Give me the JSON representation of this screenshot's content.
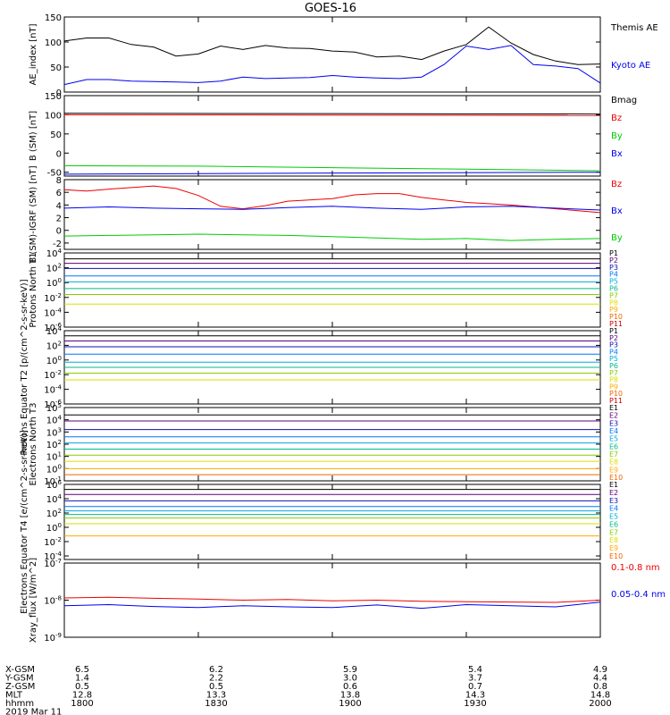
{
  "title": "GOES-16",
  "footer": {
    "rows": [
      "X-GSM",
      "Y-GSM",
      "Z-GSM",
      "MLT",
      "hhmm"
    ],
    "date": "2019 Mar 11",
    "columns": [
      [
        "6.5",
        "1.4",
        "0.5",
        "12.8",
        "1800"
      ],
      [
        "6.2",
        "2.2",
        "0.5",
        "13.3",
        "1830"
      ],
      [
        "5.9",
        "3.0",
        "0.6",
        "13.8",
        "1900"
      ],
      [
        "5.4",
        "3.7",
        "0.7",
        "14.3",
        "1930"
      ],
      [
        "4.9",
        "4.4",
        "0.8",
        "14.8",
        "2000"
      ]
    ]
  },
  "colors": {
    "black": "#000000",
    "blue": "#0000ee",
    "green": "#00cc00",
    "red": "#ee0000",
    "p": [
      "#000000",
      "#5a007a",
      "#1010b0",
      "#0077ff",
      "#00aadd",
      "#00bb88",
      "#88cc00",
      "#dddd00",
      "#ffaa00",
      "#ee6600",
      "#cc0000"
    ]
  },
  "chart_data": [
    {
      "type": "line",
      "ylabel": "AE_index [nT]",
      "ylim": [
        0,
        150
      ],
      "yticks": [
        "0",
        "50",
        "100",
        "150"
      ],
      "series": [
        {
          "name": "Themis AE",
          "color": "#000000",
          "x": [
            0,
            5,
            10,
            15,
            20,
            25,
            30,
            35,
            40,
            45,
            50,
            55,
            60,
            65,
            70,
            75,
            80,
            85,
            90,
            95,
            100,
            105,
            110,
            115,
            120
          ],
          "y": [
            102,
            108,
            108,
            95,
            90,
            72,
            76,
            92,
            85,
            93,
            88,
            87,
            82,
            80,
            70,
            72,
            65,
            82,
            95,
            130,
            98,
            75,
            62,
            55,
            56
          ]
        },
        {
          "name": "Kyoto AE",
          "color": "#0000ee",
          "x": [
            0,
            5,
            10,
            15,
            20,
            25,
            30,
            35,
            40,
            45,
            50,
            55,
            60,
            65,
            70,
            75,
            80,
            85,
            90,
            95,
            100,
            105,
            110,
            115,
            120
          ],
          "y": [
            15,
            25,
            25,
            22,
            21,
            20,
            19,
            22,
            30,
            27,
            28,
            29,
            33,
            30,
            28,
            27,
            30,
            55,
            92,
            85,
            93,
            55,
            52,
            47,
            18
          ]
        }
      ]
    },
    {
      "type": "line",
      "ylabel": "B (SM) [nT]",
      "ylim": [
        -60,
        150
      ],
      "yticks": [
        "-50",
        "0",
        "50",
        "100",
        "150"
      ],
      "series": [
        {
          "name": "Bmag",
          "color": "#000000",
          "x": [
            0,
            120
          ],
          "y": [
            104,
            102
          ]
        },
        {
          "name": "Bz",
          "color": "#ee0000",
          "x": [
            0,
            120
          ],
          "y": [
            100,
            98
          ]
        },
        {
          "name": "By",
          "color": "#00cc00",
          "x": [
            0,
            30,
            60,
            90,
            120
          ],
          "y": [
            -33,
            -34,
            -38,
            -42,
            -46
          ]
        },
        {
          "name": "Bx",
          "color": "#0000ee",
          "x": [
            0,
            60,
            120
          ],
          "y": [
            -55,
            -52,
            -50
          ]
        }
      ]
    },
    {
      "type": "line",
      "ylabel": "B (SM)-IGRF (SM) [nT]",
      "ylim": [
        -3,
        8
      ],
      "yticks": [
        "-2",
        "0",
        "2",
        "4",
        "6",
        "8"
      ],
      "series": [
        {
          "name": "Bz",
          "color": "#ee0000",
          "x": [
            0,
            5,
            10,
            20,
            25,
            30,
            35,
            40,
            45,
            50,
            60,
            65,
            70,
            75,
            80,
            85,
            90,
            95,
            100,
            105,
            110,
            115,
            120
          ],
          "y": [
            6.4,
            6.2,
            6.5,
            7.0,
            6.6,
            5.5,
            3.8,
            3.4,
            3.9,
            4.6,
            5.0,
            5.6,
            5.8,
            5.8,
            5.2,
            4.8,
            4.4,
            4.2,
            4.0,
            3.7,
            3.4,
            3.1,
            2.8
          ]
        },
        {
          "name": "Bx",
          "color": "#0000ee",
          "x": [
            0,
            10,
            20,
            30,
            40,
            50,
            60,
            70,
            80,
            90,
            100,
            110,
            120
          ],
          "y": [
            3.5,
            3.7,
            3.5,
            3.4,
            3.3,
            3.6,
            3.8,
            3.5,
            3.3,
            3.7,
            3.8,
            3.5,
            3.2
          ]
        },
        {
          "name": "By",
          "color": "#00cc00",
          "x": [
            0,
            10,
            20,
            30,
            40,
            50,
            60,
            70,
            80,
            90,
            100,
            110,
            120
          ],
          "y": [
            -0.9,
            -0.8,
            -0.7,
            -0.6,
            -0.7,
            -0.8,
            -1.0,
            -1.2,
            -1.4,
            -1.3,
            -1.6,
            -1.4,
            -1.3
          ]
        }
      ]
    },
    {
      "type": "line",
      "ylabel": "Protons North T1",
      "log": true,
      "ylim": [
        -6,
        4
      ],
      "yticks": [
        "10^4",
        "10^2",
        "10^0",
        "10^-2",
        "10^-4",
        "10^-6"
      ],
      "series_names": [
        "P1",
        "P2",
        "P3",
        "P4",
        "P5",
        "P6",
        "P7",
        "P8",
        "P9",
        "P10",
        "P11"
      ],
      "levels": [
        3.2,
        2.6,
        1.9,
        0.9,
        0.1,
        -0.8,
        -1.6,
        -2.9,
        null,
        null,
        null
      ]
    },
    {
      "type": "line",
      "ylabel": "Protons Equator T2 [p/(cm^2-s-sr-keV)]",
      "log": true,
      "ylim": [
        -6,
        4
      ],
      "yticks": [
        "10^4",
        "10^2",
        "10^0",
        "10^-2",
        "10^-4",
        "10^-6"
      ],
      "series_names": [
        "P1",
        "P2",
        "P3",
        "P4",
        "P5",
        "P6",
        "P7",
        "P8",
        "P9",
        "P10",
        "P11"
      ],
      "levels": [
        3.3,
        2.6,
        1.8,
        0.8,
        -0.3,
        -1.0,
        -1.8,
        -2.7,
        null,
        null,
        null
      ]
    },
    {
      "type": "line",
      "ylabel": "Electrons North T3",
      "log": true,
      "ylim": [
        -1,
        5
      ],
      "yticks": [
        "10^5",
        "10^4",
        "10^3",
        "10^2",
        "10^1",
        "10^0",
        "10^-1"
      ],
      "series_names": [
        "E1",
        "E2",
        "E3",
        "E4",
        "E5",
        "E6",
        "E7",
        "E8",
        "E9",
        "E10"
      ],
      "levels": [
        4.4,
        3.9,
        3.2,
        2.6,
        2.1,
        1.6,
        1.1,
        0.6,
        0.0,
        -0.5
      ]
    },
    {
      "type": "line",
      "ylabel": "Electrons Equator T4 [e/(cm^2-s-sr-keV)]",
      "log": true,
      "ylim": [
        -4.5,
        6
      ],
      "yticks": [
        "10^6",
        "10^4",
        "10^2",
        "10^0",
        "10^-2",
        "10^-4"
      ],
      "series_names": [
        "E1",
        "E2",
        "E3",
        "E4",
        "E5",
        "E6",
        "E7",
        "E8",
        "E9",
        "E10"
      ],
      "levels": [
        5.3,
        4.6,
        3.7,
        2.9,
        2.3,
        1.8,
        1.3,
        0.5,
        -1.2,
        null
      ]
    },
    {
      "type": "line",
      "ylabel": "Xray_flux [W/m^2]",
      "log": true,
      "ylim": [
        -9,
        -7
      ],
      "yticks": [
        "10^-7",
        "10^-8",
        "10^-9"
      ],
      "series": [
        {
          "name": "0.1-0.8 nm",
          "color": "#ee0000",
          "x": [
            0,
            10,
            20,
            30,
            40,
            50,
            60,
            70,
            80,
            90,
            100,
            110,
            120
          ],
          "y": [
            -7.94,
            -7.92,
            -7.95,
            -7.97,
            -8.0,
            -7.98,
            -8.02,
            -8.0,
            -8.03,
            -8.04,
            -8.05,
            -8.06,
            -8.0
          ]
        },
        {
          "name": "0.05-0.4 nm",
          "color": "#0000ee",
          "x": [
            0,
            10,
            20,
            30,
            40,
            50,
            60,
            70,
            80,
            90,
            100,
            110,
            120
          ],
          "y": [
            -8.15,
            -8.12,
            -8.17,
            -8.2,
            -8.15,
            -8.18,
            -8.2,
            -8.13,
            -8.22,
            -8.12,
            -8.15,
            -8.18,
            -8.05
          ]
        }
      ]
    }
  ]
}
